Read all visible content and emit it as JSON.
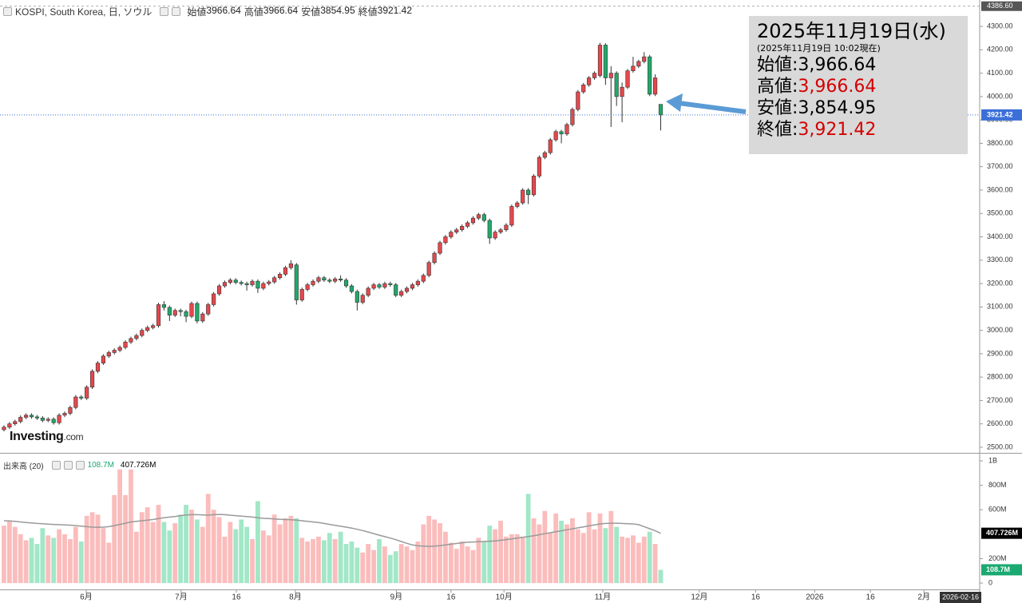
{
  "chart_data": [
    {
      "type": "candlestick",
      "title": "KOSPI, South Korea, 日, ソウル",
      "legend": [
        {
          "label": "始値",
          "value": 3966.64
        },
        {
          "label": "高値",
          "value": 3966.64
        },
        {
          "label": "安値",
          "value": 3854.95
        },
        {
          "label": "終値",
          "value": 3921.42
        }
      ],
      "open": [
        2575,
        2586,
        2600,
        2610,
        2628,
        2637,
        2630,
        2625,
        2615,
        2620,
        2605,
        2637,
        2645,
        2670,
        2715,
        2710,
        2757,
        2825,
        2860,
        2890,
        2905,
        2915,
        2927,
        2950,
        2965,
        2978,
        3000,
        3012,
        3020,
        3110,
        3098,
        3065,
        3085,
        3080,
        3060,
        3115,
        3040,
        3070,
        3110,
        3156,
        3190,
        3205,
        3215,
        3205,
        3200,
        3195,
        3210,
        3180,
        3200,
        3207,
        3225,
        3240,
        3268,
        3280,
        3130,
        3175,
        3195,
        3210,
        3225,
        3215,
        3210,
        3220,
        3215,
        3190,
        3166,
        3120,
        3150,
        3180,
        3195,
        3185,
        3200,
        3195,
        3150,
        3166,
        3180,
        3195,
        3210,
        3235,
        3290,
        3330,
        3375,
        3400,
        3420,
        3430,
        3445,
        3460,
        3480,
        3495,
        3470,
        3395,
        3420,
        3430,
        3450,
        3530,
        3545,
        3600,
        3580,
        3660,
        3740,
        3760,
        3815,
        3850,
        3840,
        3880,
        3945,
        4020,
        4050,
        4080,
        4090,
        4220,
        4080,
        4100,
        4000,
        4040,
        4110,
        4130,
        4150,
        4170,
        4010,
        3966.64
      ],
      "high": [
        2594,
        2608,
        2618,
        2636,
        2645,
        2645,
        2638,
        2633,
        2628,
        2628,
        2645,
        2653,
        2678,
        2723,
        2723,
        2765,
        2833,
        2868,
        2898,
        2913,
        2923,
        2935,
        2958,
        2973,
        2986,
        3008,
        3020,
        3028,
        3118,
        3125,
        3106,
        3093,
        3093,
        3088,
        3123,
        3123,
        3078,
        3118,
        3164,
        3198,
        3213,
        3223,
        3223,
        3213,
        3208,
        3218,
        3218,
        3208,
        3215,
        3233,
        3248,
        3276,
        3300,
        3288,
        3183,
        3203,
        3218,
        3233,
        3233,
        3223,
        3228,
        3235,
        3223,
        3198,
        3174,
        3158,
        3188,
        3203,
        3203,
        3208,
        3208,
        3203,
        3174,
        3188,
        3203,
        3218,
        3243,
        3298,
        3338,
        3383,
        3408,
        3428,
        3438,
        3453,
        3468,
        3488,
        3503,
        3503,
        3478,
        3428,
        3438,
        3458,
        3538,
        3553,
        3608,
        3608,
        3668,
        3748,
        3768,
        3823,
        3858,
        3858,
        3888,
        3953,
        4028,
        4058,
        4088,
        4108,
        4230,
        4228,
        4130,
        4108,
        4060,
        4118,
        4170,
        4158,
        4190,
        4178,
        4095,
        3966.64
      ],
      "low": [
        2568,
        2578,
        2592,
        2602,
        2620,
        2622,
        2617,
        2607,
        2607,
        2597,
        2597,
        2629,
        2637,
        2662,
        2702,
        2702,
        2749,
        2817,
        2852,
        2882,
        2897,
        2907,
        2919,
        2942,
        2957,
        2970,
        2992,
        3004,
        3012,
        3085,
        3040,
        3057,
        3060,
        3035,
        3052,
        3030,
        3032,
        3062,
        3102,
        3148,
        3182,
        3197,
        3197,
        3192,
        3170,
        3187,
        3160,
        3172,
        3192,
        3199,
        3217,
        3232,
        3260,
        3110,
        3122,
        3167,
        3187,
        3202,
        3207,
        3202,
        3202,
        3207,
        3182,
        3158,
        3085,
        3112,
        3142,
        3172,
        3177,
        3177,
        3187,
        3142,
        3142,
        3158,
        3172,
        3187,
        3202,
        3227,
        3282,
        3322,
        3367,
        3392,
        3412,
        3422,
        3437,
        3452,
        3472,
        3462,
        3370,
        3387,
        3412,
        3422,
        3442,
        3522,
        3537,
        3540,
        3572,
        3652,
        3732,
        3752,
        3807,
        3800,
        3832,
        3872,
        3937,
        4012,
        4042,
        4072,
        4082,
        4050,
        3870,
        3960,
        3890,
        4032,
        4102,
        4122,
        4142,
        4002,
        4002,
        3854.95
      ],
      "close": [
        2586,
        2600,
        2610,
        2628,
        2637,
        2630,
        2625,
        2615,
        2620,
        2605,
        2637,
        2645,
        2670,
        2715,
        2710,
        2757,
        2825,
        2860,
        2890,
        2905,
        2915,
        2927,
        2950,
        2965,
        2978,
        3000,
        3012,
        3020,
        3110,
        3098,
        3065,
        3085,
        3080,
        3060,
        3115,
        3040,
        3070,
        3110,
        3156,
        3190,
        3205,
        3215,
        3205,
        3200,
        3195,
        3210,
        3180,
        3200,
        3207,
        3225,
        3240,
        3268,
        3285,
        3130,
        3175,
        3195,
        3210,
        3225,
        3215,
        3210,
        3220,
        3215,
        3190,
        3166,
        3120,
        3150,
        3180,
        3195,
        3185,
        3200,
        3195,
        3150,
        3166,
        3180,
        3195,
        3210,
        3235,
        3290,
        3330,
        3375,
        3400,
        3420,
        3430,
        3445,
        3460,
        3480,
        3495,
        3470,
        3395,
        3420,
        3430,
        3450,
        3530,
        3545,
        3600,
        3580,
        3660,
        3740,
        3760,
        3815,
        3850,
        3840,
        3880,
        3945,
        4020,
        4050,
        4080,
        4100,
        4220,
        4080,
        4100,
        4000,
        4040,
        4110,
        4130,
        4150,
        4170,
        4010,
        4080,
        3921.42
      ],
      "up_color": "#e5484d",
      "down_color": "#22a86a",
      "xlim": [
        -0.72,
        176.8
      ],
      "xticks": [
        {
          "value": 14.9,
          "label": "6月"
        },
        {
          "value": 32.1,
          "label": "7月"
        },
        {
          "value": 42.1,
          "label": "16"
        },
        {
          "value": 52.8,
          "label": "8月"
        },
        {
          "value": 71.1,
          "label": "9月"
        },
        {
          "value": 81,
          "label": "16"
        },
        {
          "value": 90.6,
          "label": "10月"
        },
        {
          "value": 108.5,
          "label": "11月"
        },
        {
          "value": 126,
          "label": "12月"
        },
        {
          "value": 136.2,
          "label": "16"
        },
        {
          "value": 146.9,
          "label": "2026"
        },
        {
          "value": 157,
          "label": "16"
        },
        {
          "value": 166.7,
          "label": "2月"
        }
      ],
      "x_end_marker": {
        "value": 176.8,
        "label": "2026-02-16"
      },
      "ylim": [
        2476,
        4413
      ],
      "yticks": [
        {
          "value": 2500,
          "label": "2500.00"
        },
        {
          "value": 2600,
          "label": "2600.00"
        },
        {
          "value": 2700,
          "label": "2700.00"
        },
        {
          "value": 2800,
          "label": "2800.00"
        },
        {
          "value": 2900,
          "label": "2900.00"
        },
        {
          "value": 3000,
          "label": "3000.00"
        },
        {
          "value": 3100,
          "label": "3100.00"
        },
        {
          "value": 3200,
          "label": "3200.00"
        },
        {
          "value": 3300,
          "label": "3300.00"
        },
        {
          "value": 3400,
          "label": "3400.00"
        },
        {
          "value": 3500,
          "label": "3500.00"
        },
        {
          "value": 3600,
          "label": "3600.00"
        },
        {
          "value": 3700,
          "label": "3700.00"
        },
        {
          "value": 3800,
          "label": "3800.00"
        },
        {
          "value": 3900,
          "label": "3900.00"
        },
        {
          "value": 4000,
          "label": "4000.00"
        },
        {
          "value": 4100,
          "label": "4100.00"
        },
        {
          "value": 4200,
          "label": "4200.00"
        },
        {
          "value": 4300,
          "label": "4300.00"
        }
      ],
      "top_line": {
        "value": 4386.6,
        "label": "4386.60"
      },
      "last_price_color": "#3b6fd8",
      "watermark": {
        "brand": "Investing",
        "suffix": ".com"
      }
    },
    {
      "type": "volume",
      "title": "出来高 (20)",
      "readouts": [
        {
          "value": 108.7,
          "label": "108.7M",
          "color": "#1aa971"
        },
        {
          "value": 407.726,
          "label": "407.726M",
          "color": "#000000"
        }
      ],
      "values": [
        470,
        510,
        460,
        400,
        350,
        370,
        320,
        450,
        390,
        370,
        440,
        400,
        360,
        460,
        340,
        550,
        580,
        560,
        450,
        330,
        720,
        930,
        720,
        930,
        420,
        580,
        620,
        500,
        640,
        500,
        430,
        490,
        560,
        640,
        600,
        520,
        460,
        730,
        600,
        540,
        380,
        500,
        440,
        520,
        460,
        360,
        670,
        430,
        390,
        560,
        480,
        530,
        550,
        530,
        370,
        340,
        360,
        380,
        350,
        410,
        360,
        420,
        320,
        340,
        290,
        250,
        320,
        270,
        360,
        300,
        230,
        260,
        320,
        300,
        270,
        340,
        480,
        550,
        520,
        490,
        420,
        330,
        280,
        340,
        300,
        270,
        370,
        340,
        470,
        440,
        510,
        380,
        400,
        400,
        380,
        730,
        530,
        480,
        590,
        410,
        570,
        510,
        480,
        530,
        440,
        410,
        580,
        440,
        570,
        450,
        590,
        460,
        380,
        370,
        390,
        330,
        380,
        420,
        320,
        108.7
      ],
      "ma": [
        510,
        508,
        505,
        500,
        496,
        492,
        488,
        485,
        482,
        480,
        478,
        476,
        474,
        470,
        466,
        462,
        458,
        456,
        458,
        462,
        470,
        480,
        490,
        500,
        505,
        510,
        515,
        520,
        528,
        535,
        540,
        545,
        552,
        558,
        560,
        560,
        558,
        556,
        560,
        562,
        560,
        555,
        552,
        548,
        545,
        540,
        535,
        530,
        528,
        525,
        522,
        520,
        518,
        515,
        510,
        505,
        500,
        495,
        488,
        480,
        472,
        465,
        458,
        450,
        440,
        430,
        418,
        405,
        392,
        380,
        368,
        355,
        340,
        325,
        312,
        305,
        302,
        300,
        302,
        306,
        312,
        318,
        324,
        330,
        334,
        336,
        338,
        340,
        342,
        345,
        350,
        356,
        362,
        368,
        374,
        380,
        388,
        396,
        404,
        412,
        420,
        428,
        436,
        444,
        452,
        460,
        468,
        476,
        484,
        488,
        490,
        490,
        488,
        486,
        484,
        478,
        462,
        445,
        428,
        407.726
      ],
      "up_color": "#fbbcbc",
      "down_color": "#a2e7c7",
      "ma_color": "#9a9a9a",
      "ylim": [
        -52,
        1046
      ],
      "yticks": [
        0,
        {
          "value": 200,
          "label": "200M"
        },
        {
          "value": 600,
          "label": "600M"
        },
        {
          "value": 800,
          "label": "800M"
        },
        {
          "value": 1000,
          "label": "1B"
        }
      ]
    }
  ],
  "callout": {
    "date": "2025年11月19日(水)",
    "time": "(2025年11月19日 10:02現在)",
    "items": [
      {
        "label": "始値:",
        "value": 3966.64,
        "value_label": "3,966.64",
        "color": "#000000"
      },
      {
        "label": "高値:",
        "value": 3966.64,
        "value_label": "3,966.64",
        "color": "#d40000"
      },
      {
        "label": "安値:",
        "value": 3854.95,
        "value_label": "3,854.95",
        "color": "#000000"
      },
      {
        "label": "終値:",
        "value": 3921.42,
        "value_label": "3,921.42",
        "color": "#d40000"
      }
    ],
    "arrow_color": "#5b9bd5"
  }
}
